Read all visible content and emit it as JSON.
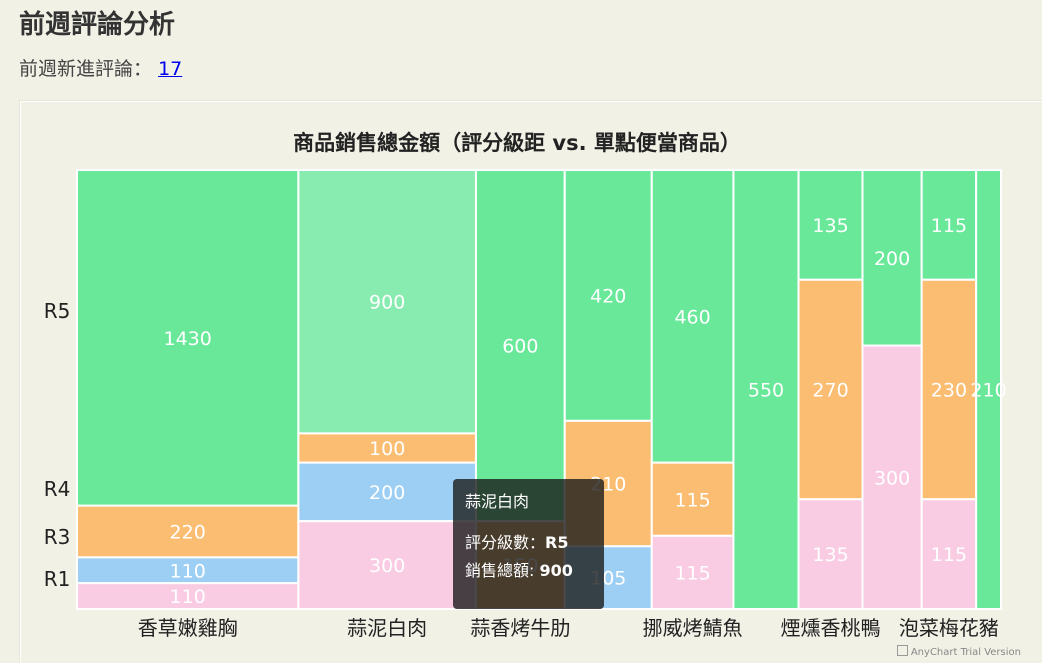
{
  "page": {
    "title": "前週評論分析",
    "new_reviews_label": "前週新進評論：",
    "new_reviews_count": "17"
  },
  "chart_data": {
    "type": "mosaic",
    "title": "商品銷售總金額（評分級距 vs. 單點便當商品）",
    "y_categories": [
      "R5",
      "R4",
      "R3",
      "R1"
    ],
    "colors": {
      "R5": "#69e89a",
      "R4": "#fbbd71",
      "R3": "#9dcff4",
      "R1": "#f9cce3",
      "R5_highlight": "#88ecb0"
    },
    "x_tick_labels": [
      "香草嫩雞胸",
      "蒜泥白肉",
      "蒜香烤牛肋",
      "挪威烤鯖魚",
      "煙燻香桃鴨",
      "泡菜梅花豬"
    ],
    "columns": [
      {
        "name": "香草嫩雞胸",
        "values": {
          "R5": 1430,
          "R4": 220,
          "R3": 110,
          "R1": 110
        }
      },
      {
        "name": "蒜泥白肉",
        "values": {
          "R5": 900,
          "R4": 100,
          "R3": 200,
          "R1": 300
        }
      },
      {
        "name": "蒜香烤牛肋",
        "values": {
          "R5": 600,
          "R4": 150
        }
      },
      {
        "name": "",
        "values": {
          "R5": 420,
          "R4": 210,
          "R3": 105
        }
      },
      {
        "name": "挪威烤鯖魚",
        "values": {
          "R5": 460,
          "R4": 115,
          "R1": 115
        }
      },
      {
        "name": "",
        "values": {
          "R5": 550
        }
      },
      {
        "name": "煙燻香桃鴨",
        "values": {
          "R5": 135,
          "R4": 270,
          "R1": 135
        }
      },
      {
        "name": "",
        "values": {
          "R5": 200,
          "R1": 300
        }
      },
      {
        "name": "泡菜梅花豬",
        "values": {
          "R5": 115,
          "R4": 230,
          "R1": 115
        }
      },
      {
        "name": "",
        "values": {
          "R5": 210
        }
      }
    ],
    "highlight": {
      "column": "蒜泥白肉",
      "category": "R5"
    }
  },
  "tooltip": {
    "title": "蒜泥白肉",
    "rating_label": "評分級數：",
    "rating_value": "R5",
    "sales_label": "銷售總額: ",
    "sales_value": "900"
  },
  "credits": "AnyChart Trial Version"
}
